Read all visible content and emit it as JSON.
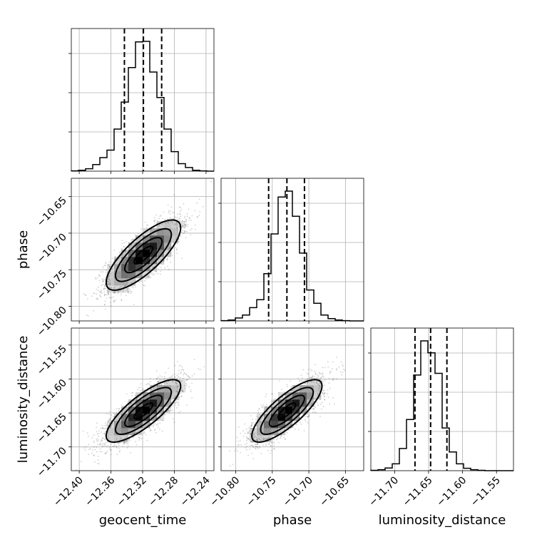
{
  "chart_data": {
    "type": "corner",
    "grid": true,
    "parameters": [
      {
        "name": "geocent_time",
        "xlabel": "geocent_time",
        "range": [
          -12.41,
          -12.23
        ],
        "ticks": [
          -12.4,
          -12.36,
          -12.32,
          -12.28,
          -12.24
        ],
        "tick_labels": [
          "−12.40",
          "−12.36",
          "−12.32",
          "−12.28",
          "−12.24"
        ],
        "quantiles": [
          -12.343,
          -12.319,
          -12.296
        ],
        "hist_bins": 20,
        "hist_values": [
          1,
          3,
          8,
          22,
          45,
          70,
          140,
          230,
          345,
          430,
          432,
          330,
          245,
          140,
          65,
          25,
          12,
          3,
          1,
          0
        ]
      },
      {
        "name": "phase",
        "xlabel": "phase",
        "ylabel": "phase",
        "range": [
          -10.82,
          -10.625
        ],
        "ticks": [
          -10.8,
          -10.75,
          -10.7,
          -10.65
        ],
        "tick_labels": [
          "−10.80",
          "−10.75",
          "−10.70",
          "−10.65"
        ],
        "quantiles": [
          -10.755,
          -10.73,
          -10.706
        ],
        "hist_bins": 20,
        "hist_values": [
          1,
          3,
          10,
          20,
          45,
          72,
          160,
          295,
          420,
          440,
          355,
          230,
          105,
          60,
          20,
          8,
          3,
          1,
          0,
          0
        ]
      },
      {
        "name": "luminosity_distance",
        "xlabel": "luminosity_distance",
        "ylabel": "luminosity_distance",
        "range": [
          -11.735,
          -11.525
        ],
        "ticks": [
          -11.7,
          -11.65,
          -11.6,
          -11.55
        ],
        "tick_labels": [
          "−11.70",
          "−11.65",
          "−11.60",
          "−11.55"
        ],
        "quantiles": [
          -11.67,
          -11.647,
          -11.623
        ],
        "hist_bins": 20,
        "hist_values": [
          1,
          3,
          8,
          20,
          65,
          150,
          280,
          380,
          345,
          285,
          125,
          55,
          20,
          7,
          3,
          1,
          0,
          0,
          0,
          0
        ]
      }
    ],
    "pairs": [
      {
        "x": "geocent_time",
        "y": "phase",
        "mean": [
          -12.319,
          -10.73
        ],
        "sigma": [
          0.0235,
          0.024
        ],
        "correlation": 0.78,
        "contour_levels_sigma": [
          0.5,
          1.0,
          1.5,
          2.0
        ]
      },
      {
        "x": "geocent_time",
        "y": "luminosity_distance",
        "mean": [
          -12.319,
          -11.647
        ],
        "sigma": [
          0.0235,
          0.023
        ],
        "correlation": 0.8,
        "contour_levels_sigma": [
          0.5,
          1.0,
          1.5,
          2.0
        ]
      },
      {
        "x": "phase",
        "y": "luminosity_distance",
        "mean": [
          -10.73,
          -11.647
        ],
        "sigma": [
          0.024,
          0.023
        ],
        "correlation": 0.8,
        "contour_levels_sigma": [
          0.5,
          1.0,
          1.5,
          2.0
        ]
      }
    ]
  }
}
